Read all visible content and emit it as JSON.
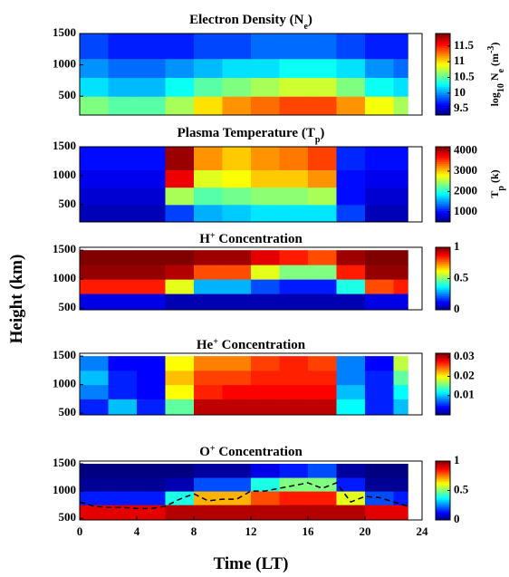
{
  "chart_data": [
    {
      "type": "heatmap",
      "title": [
        "Electron Density (N",
        "e",
        ")"
      ],
      "colorbar_label": [
        "log",
        "10",
        " N",
        "e",
        " (m",
        "-3",
        ")"
      ],
      "ylim": [
        200,
        1500
      ],
      "yticks": [
        500,
        1000,
        1500
      ],
      "zlim": [
        9.3,
        11.9
      ],
      "zticks": [
        9.5,
        10,
        10.5,
        11,
        11.5
      ],
      "x_edges": [
        0,
        2,
        4,
        6,
        8,
        10,
        12,
        14,
        16,
        18,
        20,
        22,
        23
      ],
      "y_edges": [
        200,
        500,
        800,
        1100,
        1500
      ],
      "z": [
        [
          10.6,
          10.5,
          10.5,
          10.7,
          11.0,
          11.2,
          11.3,
          11.4,
          11.4,
          11.2,
          10.9,
          10.7
        ],
        [
          10.2,
          10.1,
          10.1,
          10.3,
          10.5,
          10.6,
          10.7,
          10.8,
          10.8,
          10.6,
          10.3,
          10.2
        ],
        [
          10.0,
          9.9,
          9.9,
          10.0,
          10.1,
          10.2,
          10.2,
          10.3,
          10.3,
          10.2,
          10.0,
          9.9
        ],
        [
          9.8,
          9.7,
          9.7,
          9.7,
          9.8,
          9.8,
          9.9,
          9.9,
          9.9,
          9.8,
          9.7,
          9.7
        ]
      ]
    },
    {
      "type": "heatmap",
      "title": [
        "Plasma Temperature (T",
        "p",
        ")"
      ],
      "colorbar_label": [
        "T",
        "p",
        " (k)"
      ],
      "ylim": [
        200,
        1500
      ],
      "yticks": [
        500,
        1000,
        1500
      ],
      "zlim": [
        500,
        4200
      ],
      "zticks": [
        1000,
        2000,
        3000,
        4000
      ],
      "x_edges": [
        0,
        2,
        4,
        6,
        8,
        10,
        12,
        14,
        16,
        18,
        20,
        22,
        23
      ],
      "y_edges": [
        200,
        500,
        800,
        1100,
        1500
      ],
      "z": [
        [
          700,
          700,
          700,
          1200,
          1600,
          1700,
          1800,
          1800,
          1800,
          1200,
          700,
          700
        ],
        [
          800,
          800,
          800,
          2500,
          2200,
          2300,
          2400,
          2400,
          2500,
          1000,
          800,
          800
        ],
        [
          900,
          900,
          900,
          3800,
          2700,
          2800,
          3000,
          3000,
          3200,
          1000,
          900,
          900
        ],
        [
          1000,
          1000,
          1000,
          4100,
          3200,
          3000,
          3200,
          3300,
          3500,
          1100,
          1000,
          1000
        ]
      ]
    },
    {
      "type": "heatmap",
      "title": [
        "H",
        "+",
        " Concentration"
      ],
      "ylabel": "Height (km)",
      "ylim": [
        470,
        1550
      ],
      "yticks": [
        500,
        1000,
        1500
      ],
      "zlim": [
        0,
        1
      ],
      "zticks": [
        0,
        0.5,
        1
      ],
      "x_edges": [
        0,
        2,
        4,
        6,
        8,
        10,
        12,
        14,
        16,
        18,
        20,
        22,
        23
      ],
      "y_edges": [
        470,
        750,
        1000,
        1250,
        1500
      ],
      "z": [
        [
          0.1,
          0.1,
          0.1,
          0.05,
          0.05,
          0.05,
          0.05,
          0.05,
          0.05,
          0.05,
          0.1,
          0.1
        ],
        [
          0.85,
          0.85,
          0.85,
          0.6,
          0.3,
          0.3,
          0.2,
          0.15,
          0.15,
          0.4,
          0.8,
          0.85
        ],
        [
          0.98,
          0.98,
          0.98,
          0.95,
          0.8,
          0.8,
          0.6,
          0.5,
          0.5,
          0.85,
          0.98,
          0.98
        ],
        [
          1,
          1,
          1,
          1,
          0.97,
          0.97,
          0.9,
          0.85,
          0.8,
          0.97,
          1,
          1
        ]
      ]
    },
    {
      "type": "heatmap",
      "title": [
        "He",
        "+",
        " Concentration"
      ],
      "ylim": [
        470,
        1550
      ],
      "yticks": [
        500,
        1000,
        1500
      ],
      "zlim": [
        0,
        0.032
      ],
      "zticks": [
        0.01,
        0.02,
        0.03
      ],
      "x_edges": [
        0,
        2,
        4,
        6,
        8,
        10,
        12,
        14,
        16,
        18,
        20,
        22,
        23
      ],
      "y_edges": [
        470,
        750,
        1000,
        1250,
        1500
      ],
      "z": [
        [
          0.005,
          0.01,
          0.005,
          0.015,
          0.03,
          0.03,
          0.03,
          0.03,
          0.03,
          0.012,
          0.005,
          0.01
        ],
        [
          0.008,
          0.005,
          0.004,
          0.02,
          0.027,
          0.028,
          0.028,
          0.028,
          0.028,
          0.01,
          0.005,
          0.012
        ],
        [
          0.01,
          0.005,
          0.004,
          0.022,
          0.026,
          0.026,
          0.027,
          0.027,
          0.027,
          0.008,
          0.005,
          0.015
        ],
        [
          0.008,
          0.004,
          0.004,
          0.02,
          0.024,
          0.024,
          0.026,
          0.027,
          0.026,
          0.008,
          0.004,
          0.018
        ]
      ]
    },
    {
      "type": "heatmap",
      "title": [
        "O",
        "+",
        " Concentration"
      ],
      "xlabel": "Time (LT)",
      "xlim": [
        0,
        24
      ],
      "xticks": [
        0,
        4,
        8,
        12,
        16,
        20,
        24
      ],
      "ylim": [
        470,
        1550
      ],
      "yticks": [
        500,
        1000,
        1500
      ],
      "zlim": [
        0,
        1
      ],
      "zticks": [
        0,
        0.5,
        1
      ],
      "x_edges": [
        0,
        2,
        4,
        6,
        8,
        10,
        12,
        14,
        16,
        18,
        20,
        22,
        23
      ],
      "y_edges": [
        470,
        750,
        1000,
        1250,
        1500
      ],
      "z": [
        [
          0.9,
          0.9,
          0.9,
          0.95,
          0.95,
          0.95,
          0.95,
          0.95,
          0.95,
          0.95,
          0.9,
          0.9
        ],
        [
          0.15,
          0.15,
          0.15,
          0.4,
          0.7,
          0.7,
          0.8,
          0.85,
          0.85,
          0.6,
          0.2,
          0.15
        ],
        [
          0.02,
          0.02,
          0.02,
          0.05,
          0.2,
          0.2,
          0.4,
          0.5,
          0.5,
          0.15,
          0.02,
          0.02
        ],
        [
          0,
          0,
          0,
          0,
          0.03,
          0.03,
          0.1,
          0.15,
          0.2,
          0.03,
          0,
          0
        ]
      ],
      "contour_line": {
        "x": [
          0,
          1,
          2,
          3,
          4,
          5,
          6,
          7,
          8,
          9,
          10,
          11,
          12,
          13,
          14,
          15,
          16,
          17,
          18,
          19,
          20,
          21,
          22,
          23
        ],
        "values": [
          800,
          720,
          700,
          700,
          680,
          680,
          720,
          850,
          950,
          820,
          850,
          850,
          1000,
          1000,
          1050,
          1100,
          1150,
          1050,
          1150,
          800,
          900,
          880,
          800,
          720
        ]
      }
    }
  ]
}
